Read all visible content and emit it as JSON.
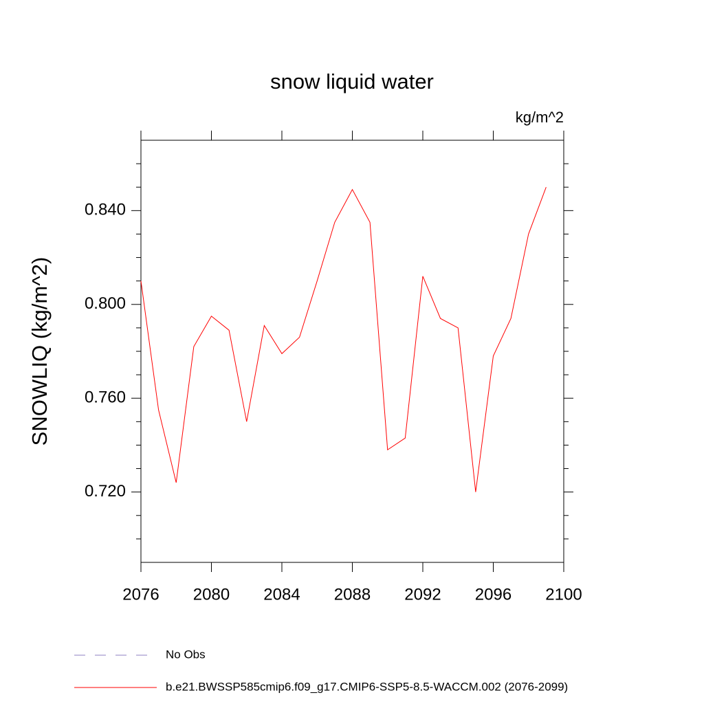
{
  "chart_data": {
    "type": "line",
    "title": "snow liquid water",
    "units_label": "kg/m^2",
    "y_label": "SNOWLIQ  (kg/m^2)",
    "x": [
      2076,
      2077,
      2078,
      2079,
      2080,
      2081,
      2082,
      2083,
      2084,
      2085,
      2086,
      2087,
      2088,
      2089,
      2090,
      2091,
      2092,
      2093,
      2094,
      2095,
      2096,
      2097,
      2098,
      2099
    ],
    "series": [
      {
        "name": "b.e21.BWSSP585cmip6.f09_g17.CMIP6-SSP5-8.5-WACCM.002 (2076-2099)",
        "color": "#ff0000",
        "values": [
          0.81,
          0.755,
          0.724,
          0.782,
          0.795,
          0.789,
          0.75,
          0.791,
          0.779,
          0.786,
          0.81,
          0.835,
          0.849,
          0.835,
          0.738,
          0.743,
          0.812,
          0.794,
          0.79,
          0.72,
          0.778,
          0.794,
          0.83,
          0.85
        ]
      }
    ],
    "extra_legend": [
      {
        "name": "No Obs",
        "color": "#8c7fc0",
        "dashed": true
      }
    ],
    "xlim": [
      2076,
      2100
    ],
    "xticks": [
      2076,
      2080,
      2084,
      2088,
      2092,
      2096,
      2100
    ],
    "ylim": [
      0.69,
      0.87
    ],
    "yticks": [
      {
        "value": 0.72,
        "label": "0.720"
      },
      {
        "value": 0.76,
        "label": "0.760"
      },
      {
        "value": 0.8,
        "label": "0.800"
      },
      {
        "value": 0.84,
        "label": "0.840"
      }
    ],
    "yminorticks": [
      0.7,
      0.71,
      0.73,
      0.74,
      0.75,
      0.77,
      0.78,
      0.79,
      0.81,
      0.82,
      0.83,
      0.85,
      0.86
    ]
  }
}
